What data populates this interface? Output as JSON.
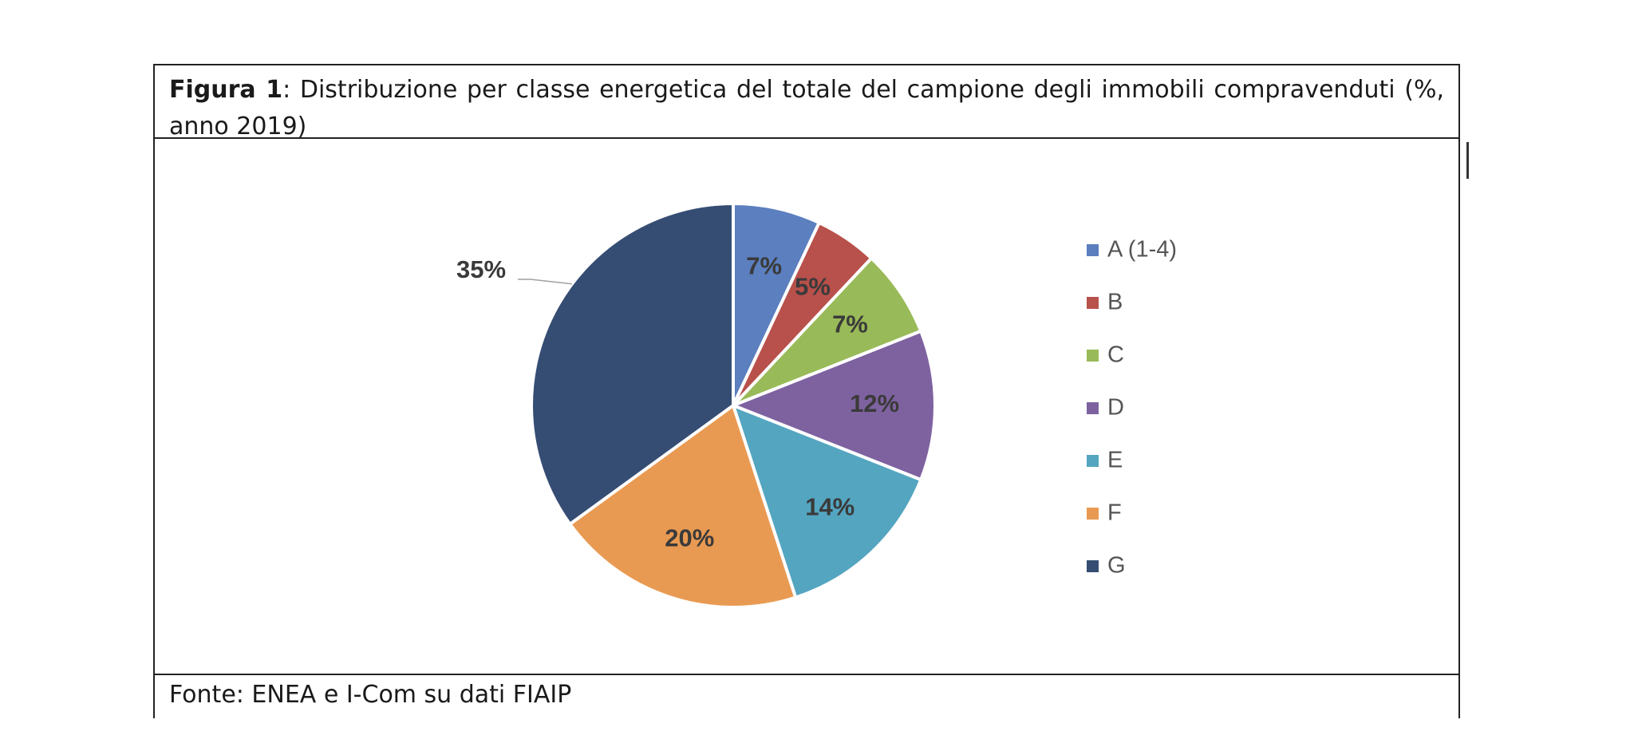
{
  "caption": {
    "bold": "Figura 1",
    "text": ": Distribuzione per classe energetica del totale del campione degli immobili compravenduti (%, anno 2019)"
  },
  "source": "Fonte: ENEA e I-Com su dati FIAIP",
  "chart_data": {
    "type": "pie",
    "title": "",
    "categories": [
      "A (1-4)",
      "B",
      "C",
      "D",
      "E",
      "F",
      "G"
    ],
    "values": [
      7,
      5,
      7,
      12,
      14,
      20,
      35
    ],
    "labels": [
      "7%",
      "5%",
      "7%",
      "12%",
      "14%",
      "20%",
      "35%"
    ],
    "colors": [
      "#5B7FBF",
      "#B8504B",
      "#99BA58",
      "#7E62A0",
      "#54A5C0",
      "#E99A52",
      "#354D73"
    ],
    "legend_position": "right",
    "start_angle": "top, clockwise"
  }
}
